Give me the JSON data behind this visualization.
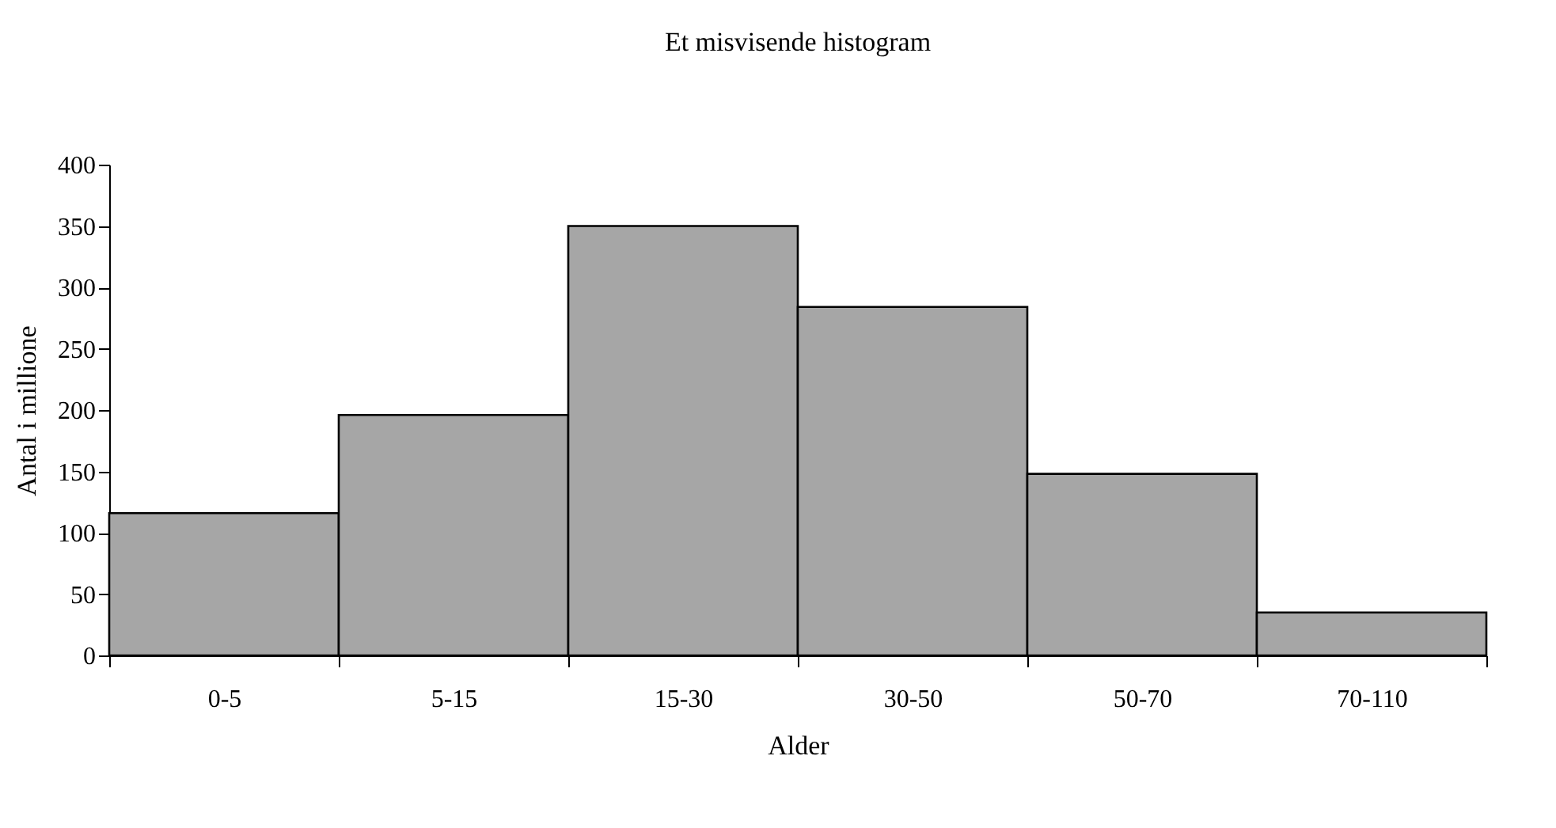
{
  "chart_data": {
    "type": "bar",
    "title": "Et misvisende histogram",
    "xlabel": "Alder",
    "ylabel": "Antal i millione",
    "categories": [
      "0-5",
      "5-15",
      "15-30",
      "30-50",
      "50-70",
      "70-110"
    ],
    "values": [
      116,
      196,
      350,
      284,
      148,
      35
    ],
    "color": "#a6a6a6",
    "ylim": [
      0,
      400
    ],
    "yticks": [
      0,
      50,
      100,
      150,
      200,
      250,
      300,
      350,
      400
    ],
    "grid": false
  }
}
